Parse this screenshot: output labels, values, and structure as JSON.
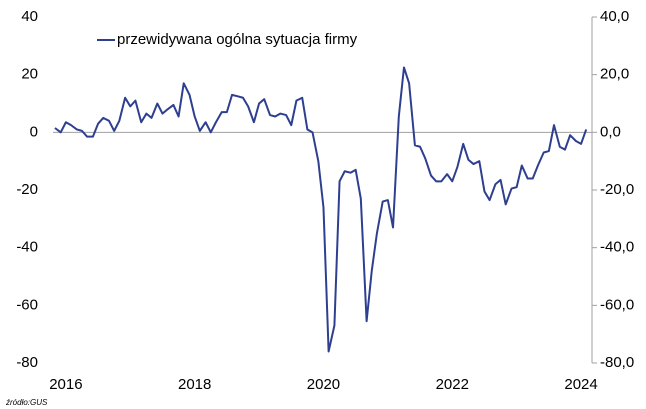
{
  "chart_data": {
    "type": "line",
    "legend_label": "przewidywana ogólna sytuacja firmy",
    "source": "źródło:GUS",
    "x": [
      2015.83,
      2015.92,
      2016.0,
      2016.08,
      2016.17,
      2016.25,
      2016.33,
      2016.42,
      2016.5,
      2016.58,
      2016.67,
      2016.75,
      2016.83,
      2016.92,
      2017.0,
      2017.08,
      2017.17,
      2017.25,
      2017.33,
      2017.42,
      2017.5,
      2017.58,
      2017.67,
      2017.75,
      2017.83,
      2017.92,
      2018.0,
      2018.08,
      2018.17,
      2018.25,
      2018.33,
      2018.42,
      2018.5,
      2018.58,
      2018.67,
      2018.75,
      2018.83,
      2018.92,
      2019.0,
      2019.08,
      2019.17,
      2019.25,
      2019.33,
      2019.42,
      2019.5,
      2019.58,
      2019.67,
      2019.75,
      2019.83,
      2019.92,
      2020.0,
      2020.08,
      2020.17,
      2020.25,
      2020.33,
      2020.42,
      2020.5,
      2020.58,
      2020.67,
      2020.75,
      2020.83,
      2020.92,
      2021.0,
      2021.08,
      2021.17,
      2021.25,
      2021.33,
      2021.42,
      2021.5,
      2021.58,
      2021.67,
      2021.75,
      2021.83,
      2021.92,
      2022.0,
      2022.08,
      2022.17,
      2022.25,
      2022.33,
      2022.42,
      2022.5,
      2022.58,
      2022.67,
      2022.75,
      2022.83,
      2022.92,
      2023.0,
      2023.08,
      2023.17,
      2023.25,
      2023.33,
      2023.42,
      2023.5,
      2023.58,
      2023.67,
      2023.75,
      2023.83,
      2023.92,
      2024.0,
      2024.08
    ],
    "series": [
      {
        "name": "przewidywana ogólna sytuacja firmy",
        "color": "#2e3f8f",
        "values": [
          1.5,
          0,
          3.5,
          2.5,
          1,
          0.5,
          -1.5,
          -1.5,
          3,
          5,
          4,
          0.5,
          4,
          12,
          9,
          11,
          3.5,
          6.5,
          5,
          10,
          6.5,
          8,
          9.5,
          5.5,
          17,
          13,
          5.5,
          0.5,
          3.5,
          0,
          3.5,
          7,
          7,
          13,
          12.5,
          12,
          9,
          3.5,
          10,
          11.5,
          6,
          5.5,
          6.5,
          6,
          2.5,
          11,
          12,
          1,
          0,
          -10,
          -26,
          -76,
          -67,
          -17,
          -13.5,
          -14,
          -13,
          -23,
          -65.5,
          -48,
          -35,
          -24,
          -23.5,
          -33,
          5.5,
          22.5,
          17,
          -4.5,
          -5,
          -9,
          -15,
          -17,
          -17,
          -14.5,
          -17,
          -12,
          -4,
          -9.5,
          -11,
          -10,
          -20.5,
          -23.5,
          -18,
          -16.5,
          -25,
          -19.5,
          -19,
          -11.5,
          -16,
          -16,
          -11.5,
          -7,
          -6.5,
          2.5,
          -5,
          -6,
          -1,
          -3,
          -4,
          1
        ]
      }
    ],
    "xlim": [
      2015.8,
      2024.17
    ],
    "xticks": [
      2016,
      2018,
      2020,
      2022,
      2024
    ],
    "ylim": [
      -80,
      40
    ],
    "yticks": [
      -80,
      -60,
      -40,
      -20,
      0,
      20,
      40
    ],
    "y2lim": [
      -80,
      40
    ],
    "y2ticks": [
      {
        "value": -80,
        "label": "-80,0"
      },
      {
        "value": -60,
        "label": "-60,0"
      },
      {
        "value": -40,
        "label": "-40,0"
      },
      {
        "value": -20,
        "label": "-20,0"
      },
      {
        "value": 0,
        "label": "0,0"
      },
      {
        "value": 20,
        "label": "20,0"
      },
      {
        "value": 40,
        "label": "40,0"
      }
    ]
  }
}
